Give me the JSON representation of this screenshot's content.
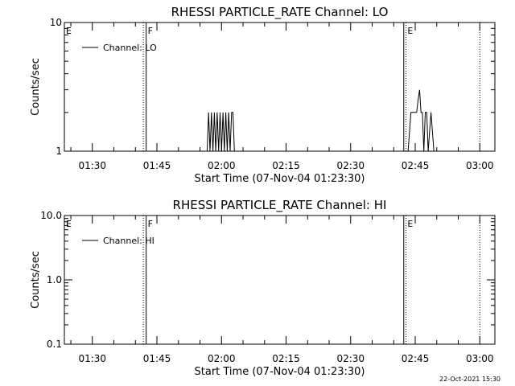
{
  "chart_data": [
    {
      "type": "line",
      "title": "RHESSI PARTICLE_RATE Channel: LO",
      "xlabel": "Start Time (07-Nov-04 01:23:30)",
      "ylabel": "Counts/sec",
      "yscale": "log",
      "xlim": [
        "01:23:30",
        "03:03:30"
      ],
      "ylim": [
        1,
        10
      ],
      "xticks": [
        "01:30",
        "01:45",
        "02:00",
        "02:15",
        "02:30",
        "02:45",
        "03:00"
      ],
      "yticks": [
        "1",
        "10"
      ],
      "legend": {
        "label": "Channel: LO",
        "placement": "top-left"
      },
      "event_lines": [
        {
          "label": "E",
          "time": "01:23:30",
          "style": "solid"
        },
        {
          "label": "",
          "time": "01:41:50",
          "style": "dotted"
        },
        {
          "label": "F",
          "time": "01:42:30",
          "style": "solid"
        },
        {
          "label": "",
          "time": "02:42:20",
          "style": "solid"
        },
        {
          "label": "E",
          "time": "02:42:50",
          "style": "dotted"
        },
        {
          "label": "",
          "time": "03:00:00",
          "style": "dotted"
        }
      ],
      "series": [
        {
          "name": "Channel: LO",
          "points": [
            [
              "01:56:40",
              1
            ],
            [
              "01:57:00",
              2
            ],
            [
              "01:57:20",
              1
            ],
            [
              "01:57:40",
              2
            ],
            [
              "01:58:00",
              1
            ],
            [
              "01:58:20",
              2
            ],
            [
              "01:58:40",
              1
            ],
            [
              "01:59:00",
              2
            ],
            [
              "01:59:20",
              1
            ],
            [
              "01:59:40",
              2
            ],
            [
              "02:00:00",
              1
            ],
            [
              "02:00:20",
              2
            ],
            [
              "02:00:40",
              1
            ],
            [
              "02:01:00",
              2
            ],
            [
              "02:01:20",
              1
            ],
            [
              "02:01:40",
              2
            ],
            [
              "02:02:00",
              1
            ],
            [
              "02:02:20",
              2
            ],
            [
              "02:02:40",
              2
            ],
            [
              "02:03:00",
              1
            ],
            [
              "02:43:20",
              1
            ],
            [
              "02:44:00",
              2
            ],
            [
              "02:44:40",
              2
            ],
            [
              "02:45:20",
              2
            ],
            [
              "02:45:40",
              2.5
            ],
            [
              "02:46:00",
              3
            ],
            [
              "02:46:20",
              2
            ],
            [
              "02:46:40",
              2
            ],
            [
              "02:47:00",
              1
            ],
            [
              "02:47:20",
              2
            ],
            [
              "02:47:40",
              2
            ],
            [
              "02:48:00",
              1
            ],
            [
              "02:48:40",
              2
            ],
            [
              "02:49:20",
              1
            ]
          ]
        }
      ]
    },
    {
      "type": "line",
      "title": "RHESSI PARTICLE_RATE Channel: HI",
      "xlabel": "Start Time (07-Nov-04 01:23:30)",
      "ylabel": "Counts/sec",
      "yscale": "log",
      "xlim": [
        "01:23:30",
        "03:03:30"
      ],
      "ylim": [
        0.1,
        10
      ],
      "xticks": [
        "01:30",
        "01:45",
        "02:00",
        "02:15",
        "02:30",
        "02:45",
        "03:00"
      ],
      "yticks": [
        "0.1",
        "1.0",
        "10.0"
      ],
      "legend": {
        "label": "Channel: HI",
        "placement": "top-left"
      },
      "event_lines": [
        {
          "label": "E",
          "time": "01:23:30",
          "style": "solid"
        },
        {
          "label": "",
          "time": "01:41:50",
          "style": "dotted"
        },
        {
          "label": "F",
          "time": "01:42:30",
          "style": "solid"
        },
        {
          "label": "",
          "time": "02:42:20",
          "style": "solid"
        },
        {
          "label": "E",
          "time": "02:42:50",
          "style": "dotted"
        },
        {
          "label": "",
          "time": "03:00:00",
          "style": "dotted"
        }
      ],
      "series": [
        {
          "name": "Channel: HI",
          "points": []
        }
      ]
    }
  ],
  "footer": {
    "timestamp": "22-Oct-2021 15:30"
  }
}
